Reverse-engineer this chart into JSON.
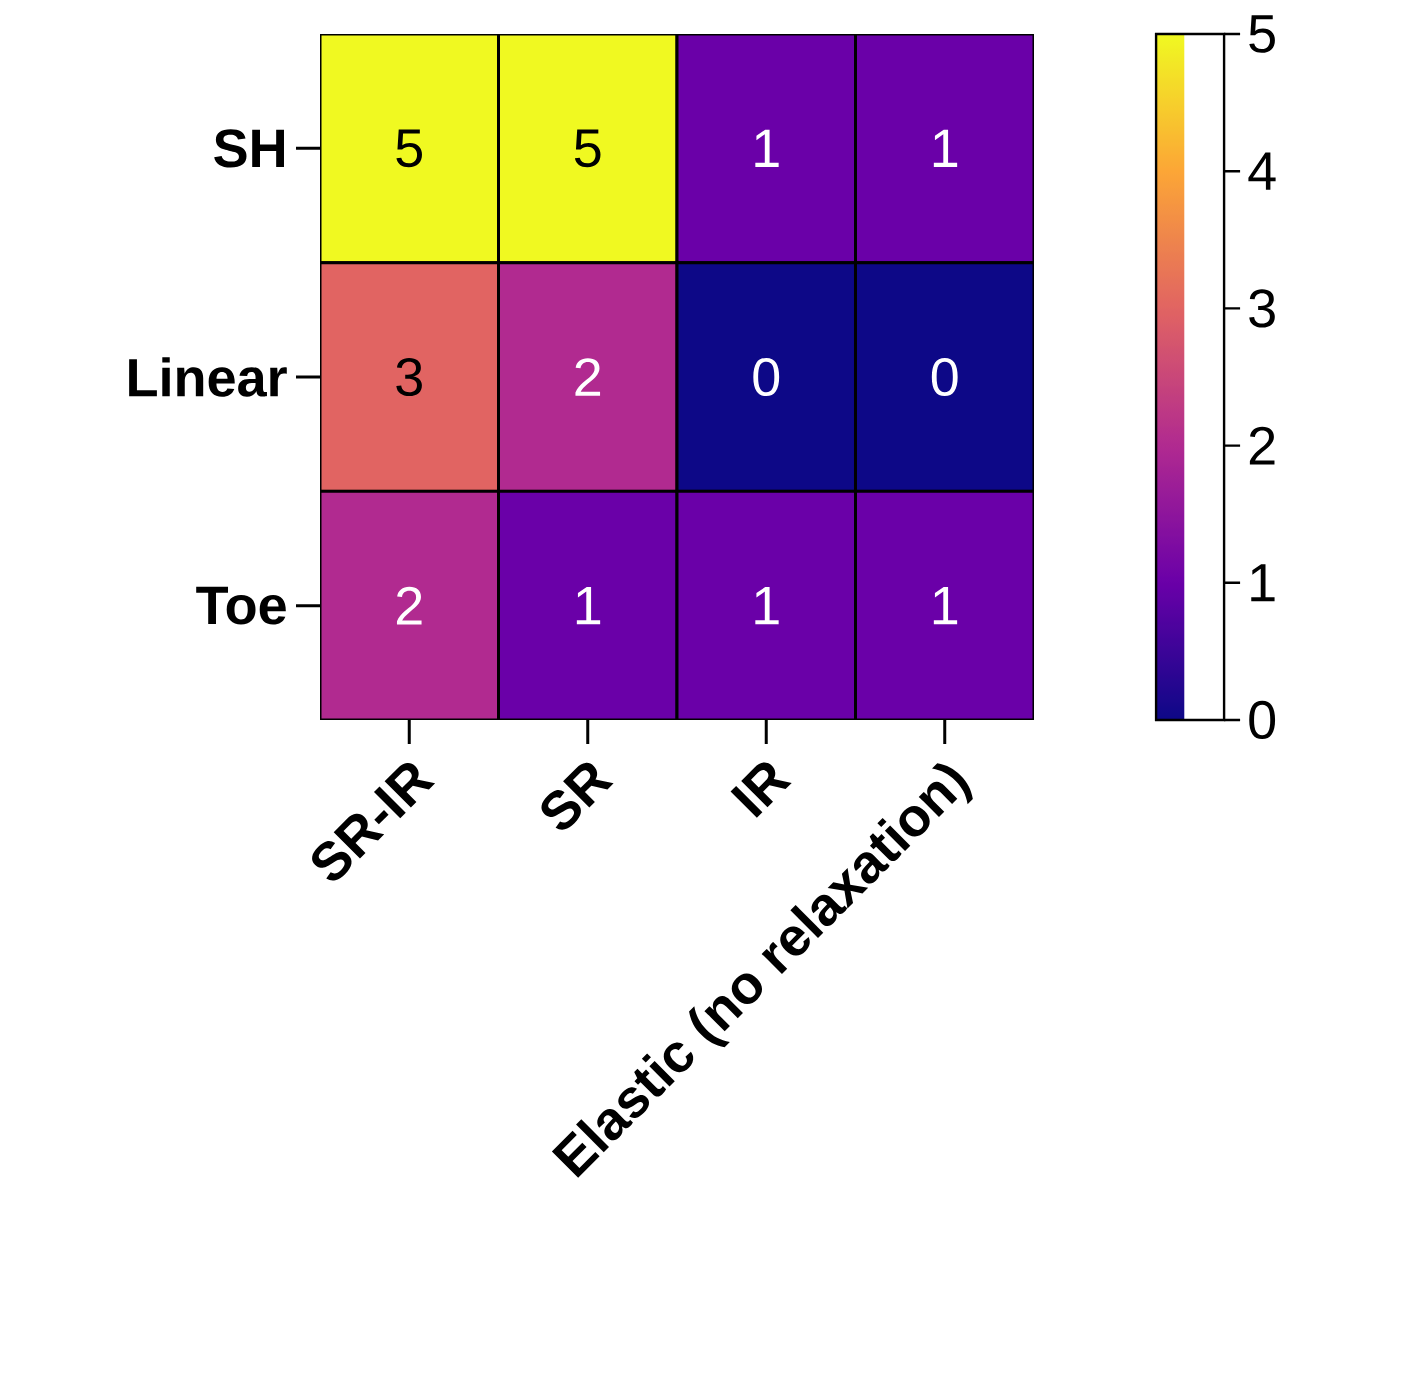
{
  "chart_data": {
    "type": "heatmap",
    "categories": [
      "SR-IR",
      "SR",
      "IR",
      "Elastic (no relaxation)"
    ],
    "y_categories": [
      "SH",
      "Linear",
      "Toe"
    ],
    "cells": [
      [
        5,
        5,
        1,
        1
      ],
      [
        3,
        2,
        0,
        0
      ],
      [
        2,
        1,
        1,
        1
      ]
    ],
    "clim": [
      0,
      5
    ],
    "cticks": [
      0,
      1,
      2,
      3,
      4,
      5
    ],
    "data_labels": true
  }
}
